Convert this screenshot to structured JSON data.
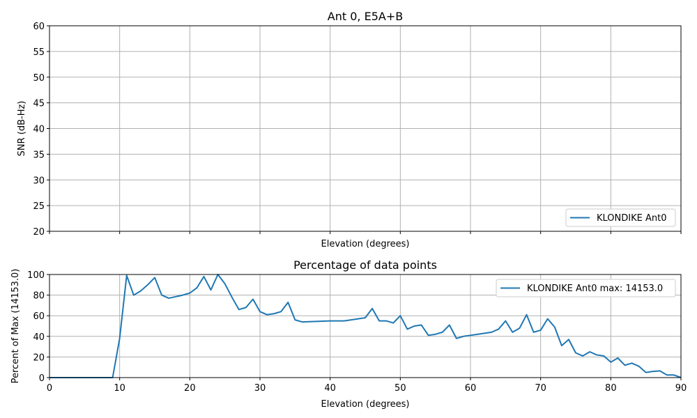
{
  "chart_data": [
    {
      "type": "line",
      "title": "Ant 0, E5A+B",
      "xlabel": "Elevation (degrees)",
      "ylabel": "SNR (dB-Hz)",
      "xlim": [
        0,
        90
      ],
      "ylim": [
        20,
        60
      ],
      "yticks": [
        "20",
        "25",
        "30",
        "35",
        "40",
        "45",
        "50",
        "55",
        "60"
      ],
      "grid": true,
      "legend_placement": "lower-right",
      "series": [
        {
          "name": "KLONDIKE Ant0",
          "x": [],
          "y": []
        }
      ]
    },
    {
      "type": "line",
      "title": "Percentage of data points",
      "xlabel": "Elevation (degrees)",
      "ylabel": "Percent of Max (14153.0)",
      "xlim": [
        0,
        90
      ],
      "ylim": [
        0,
        100
      ],
      "xticks": [
        "0",
        "10",
        "20",
        "30",
        "40",
        "50",
        "60",
        "70",
        "80",
        "90"
      ],
      "yticks": [
        "0",
        "20",
        "40",
        "60",
        "80",
        "100"
      ],
      "grid": true,
      "legend_placement": "upper-right",
      "series": [
        {
          "name": "KLONDIKE Ant0 max: 14153.0",
          "x": [
            0,
            1,
            2,
            3,
            4,
            5,
            6,
            7,
            8,
            9,
            10,
            11,
            12,
            13,
            14,
            15,
            16,
            17,
            18,
            19,
            20,
            21,
            22,
            23,
            24,
            25,
            26,
            27,
            28,
            29,
            30,
            31,
            32,
            33,
            34,
            35,
            36,
            40,
            42,
            45,
            46,
            47,
            48,
            49,
            50,
            51,
            52,
            53,
            54,
            55,
            56,
            57,
            58,
            59,
            60,
            61,
            62,
            63,
            64,
            65,
            66,
            67,
            68,
            69,
            70,
            71,
            72,
            73,
            74,
            75,
            76,
            77,
            78,
            79,
            80,
            81,
            82,
            83,
            84,
            85,
            86,
            87,
            88,
            89,
            90
          ],
          "y": [
            0,
            0,
            0,
            0,
            0,
            0,
            0,
            0,
            0,
            0,
            38,
            99,
            80,
            84,
            90,
            97,
            80,
            77,
            78.5,
            80,
            82,
            87,
            98,
            85,
            100,
            91,
            78,
            66,
            68,
            76,
            64,
            61,
            62,
            64,
            73,
            56,
            54,
            55,
            55,
            58,
            67,
            55,
            55,
            53,
            60,
            47,
            50,
            51,
            41,
            42,
            44,
            51,
            38,
            40,
            41,
            42,
            43,
            44,
            47,
            55,
            44,
            48,
            61,
            44,
            46,
            57,
            49,
            31,
            37,
            24,
            21,
            25,
            22,
            21,
            15,
            19,
            12,
            14,
            11,
            5,
            6,
            6.5,
            2.5,
            2.5,
            0
          ]
        }
      ]
    }
  ],
  "colors": {
    "series": "#1f77b4"
  }
}
